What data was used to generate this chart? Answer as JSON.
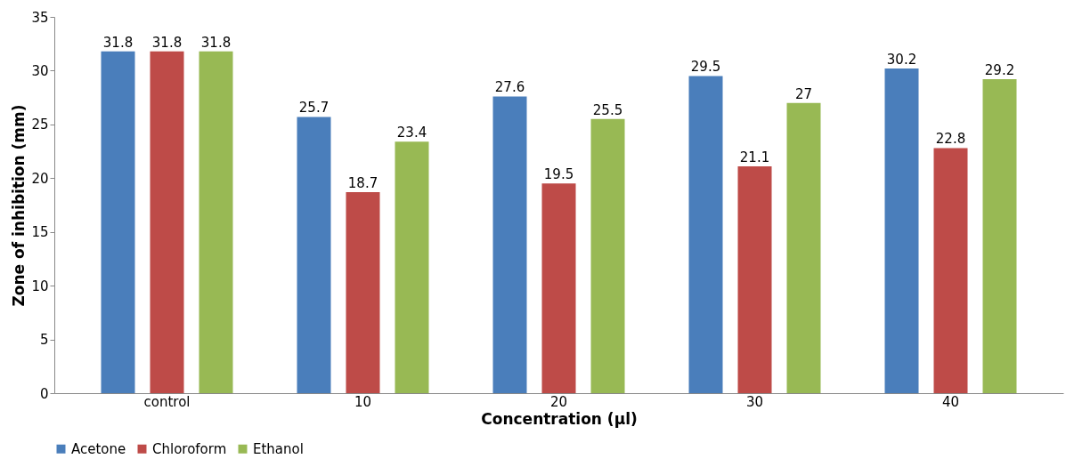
{
  "chart_data": {
    "type": "bar",
    "xlabel": "Concentration (μl)",
    "ylabel": "Zone of inhibition (mm)",
    "categories": [
      "control",
      "10",
      "20",
      "30",
      "40"
    ],
    "series": [
      {
        "name": "Acetone",
        "color": "#4a7ebb",
        "values": [
          31.8,
          25.7,
          27.6,
          29.5,
          30.2
        ]
      },
      {
        "name": "Chloroform",
        "color": "#be4b48",
        "values": [
          31.8,
          18.7,
          19.5,
          21.1,
          22.8
        ]
      },
      {
        "name": "Ethanol",
        "color": "#98b954",
        "values": [
          31.8,
          23.4,
          25.5,
          27,
          29.2
        ]
      }
    ],
    "ylim": [
      0,
      35
    ],
    "yticks": [
      0,
      5,
      10,
      15,
      20,
      25,
      30,
      35
    ],
    "grid": false,
    "legend": "bottom",
    "data_labels": true
  }
}
